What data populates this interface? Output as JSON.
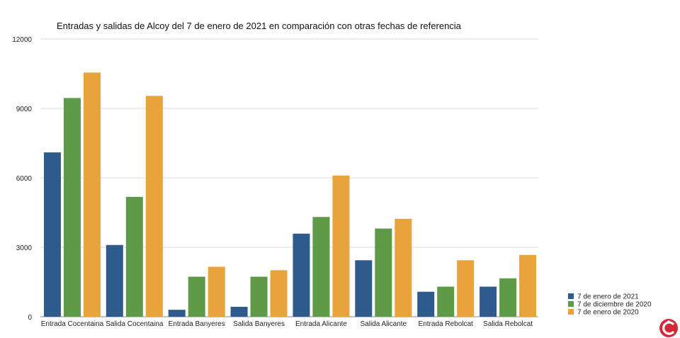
{
  "chart_data": {
    "type": "bar",
    "title": "Entradas y salidas de Alcoy del 7 de enero de 2021 en comparación con otras fechas de referencia",
    "categories": [
      "Entrada Cocentaina",
      "Salida Cocentaina",
      "Entrada Banyeres",
      "Salida Banyeres",
      "Entrada Alicante",
      "Salida Alicante",
      "Entrada Rebolcat",
      "Salida Rebolcat"
    ],
    "series": [
      {
        "name": "7 de enero de 2021",
        "color": "#2e5a8e",
        "values": [
          7100,
          3100,
          300,
          430,
          3590,
          2440,
          1080,
          1300
        ]
      },
      {
        "name": "7 de diciembre de 2020",
        "color": "#5e9a48",
        "values": [
          9450,
          5180,
          1730,
          1730,
          4310,
          3810,
          1300,
          1660
        ]
      },
      {
        "name": "7 de enero de 2020",
        "color": "#e8a33d",
        "values": [
          10550,
          9540,
          2160,
          2010,
          6100,
          4230,
          2440,
          2670
        ]
      }
    ],
    "ylim": [
      0,
      12000
    ],
    "yticks": [
      0,
      3000,
      6000,
      9000,
      12000
    ],
    "grid": true,
    "legend_position": "bottom-right"
  },
  "logo": {
    "name": "site-logo"
  }
}
